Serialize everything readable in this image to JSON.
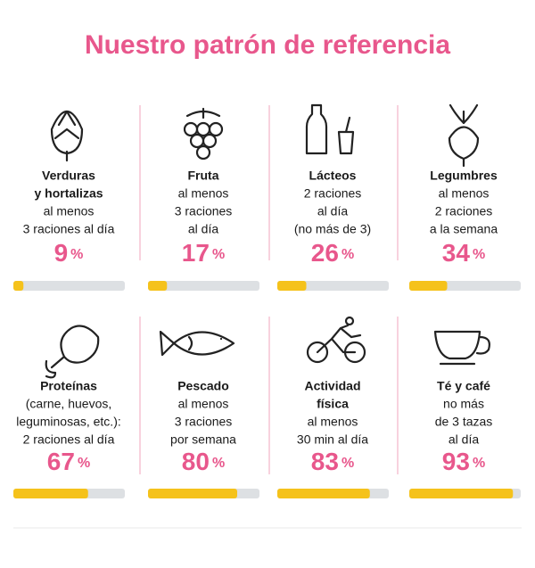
{
  "chart_data": {
    "type": "bar",
    "title": "Nuestro patrón de referencia",
    "items": [
      {
        "name": [
          "Verduras",
          "y hortalizas"
        ],
        "detail": [
          "al menos",
          "3 raciones al día"
        ]
      },
      {
        "name": [
          "Fruta"
        ],
        "detail": [
          "al menos",
          "3 raciones",
          "al día"
        ]
      },
      {
        "name": [
          "Lácteos"
        ],
        "detail": [
          "2 raciones",
          "al día",
          "(no más de 3)"
        ]
      },
      {
        "name": [
          "Legumbres"
        ],
        "detail": [
          "al menos",
          "2 raciones",
          "a la semana"
        ]
      },
      {
        "name": [
          "Proteínas"
        ],
        "detail": [
          "(carne, huevos,",
          "leguminosas, etc.):",
          "2 raciones al día"
        ]
      },
      {
        "name": [
          "Pescado"
        ],
        "detail": [
          "al menos",
          "3 raciones",
          "por semana"
        ]
      },
      {
        "name": [
          "Actividad",
          "física"
        ],
        "detail": [
          "al menos",
          "30 min al día"
        ]
      },
      {
        "name": [
          "Té y café"
        ],
        "detail": [
          "no más",
          "de 3 tazas",
          "al día"
        ]
      }
    ],
    "values": [
      9,
      17,
      26,
      34,
      67,
      80,
      83,
      93
    ],
    "unit": "%",
    "xlim": [
      0,
      100
    ],
    "color": "#f5c21b",
    "track_color": "#dde0e3",
    "accent_color": "#e8578c"
  }
}
